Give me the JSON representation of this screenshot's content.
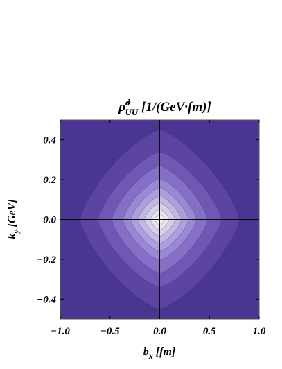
{
  "chart_data": {
    "type": "heatmap",
    "subtype": "contour",
    "title": "ρ̃ᵈUU [1/(GeV·fm)]",
    "title_parts": {
      "symbol": "ρ̃",
      "superscript": "d",
      "subscript": "UU",
      "unit": "[1/(GeV·fm)]"
    },
    "xlabel_parts": {
      "symbol": "b",
      "subscript": "x",
      "unit": "[fm]"
    },
    "ylabel_parts": {
      "symbol": "k",
      "subscript": "y",
      "unit": "[GeV]"
    },
    "xlim": [
      -1.0,
      1.0
    ],
    "ylim": [
      -0.5,
      0.5
    ],
    "x_ticks": [
      "−1.0",
      "−0.5",
      "0.0",
      "0.5",
      "1.0"
    ],
    "x_tick_values": [
      -1.0,
      -0.5,
      0.0,
      0.5,
      1.0
    ],
    "y_ticks": [
      "0.4",
      "0.2",
      "0.0",
      "−0.2",
      "−0.4"
    ],
    "y_tick_values": [
      0.4,
      0.2,
      0.0,
      -0.2,
      -0.4
    ],
    "reference_lines": {
      "x": 0.0,
      "y": 0.0
    },
    "contour_levels": [
      {
        "level": 1,
        "bx_half_width": 0.8,
        "ky_half_width": 0.45,
        "color": "#5c44a2"
      },
      {
        "level": 2,
        "bx_half_width": 0.62,
        "ky_half_width": 0.34,
        "color": "#6f58b3"
      },
      {
        "level": 3,
        "bx_half_width": 0.48,
        "ky_half_width": 0.27,
        "color": "#8570c6"
      },
      {
        "level": 4,
        "bx_half_width": 0.37,
        "ky_half_width": 0.205,
        "color": "#9a88d4"
      },
      {
        "level": 5,
        "bx_half_width": 0.29,
        "ky_half_width": 0.16,
        "color": "#ae9fdc"
      },
      {
        "level": 6,
        "bx_half_width": 0.22,
        "ky_half_width": 0.12,
        "color": "#c2b8e2"
      },
      {
        "level": 7,
        "bx_half_width": 0.155,
        "ky_half_width": 0.085,
        "color": "#d6d1e8"
      },
      {
        "level": 8,
        "bx_half_width": 0.095,
        "ky_half_width": 0.053,
        "color": "#e6e7ec"
      },
      {
        "level": 9,
        "bx_half_width": 0.05,
        "ky_half_width": 0.03,
        "color": "#f3ecdf"
      }
    ],
    "background_color": "#4b3592",
    "line_color": "#000000",
    "grid": false,
    "legend": "none"
  }
}
